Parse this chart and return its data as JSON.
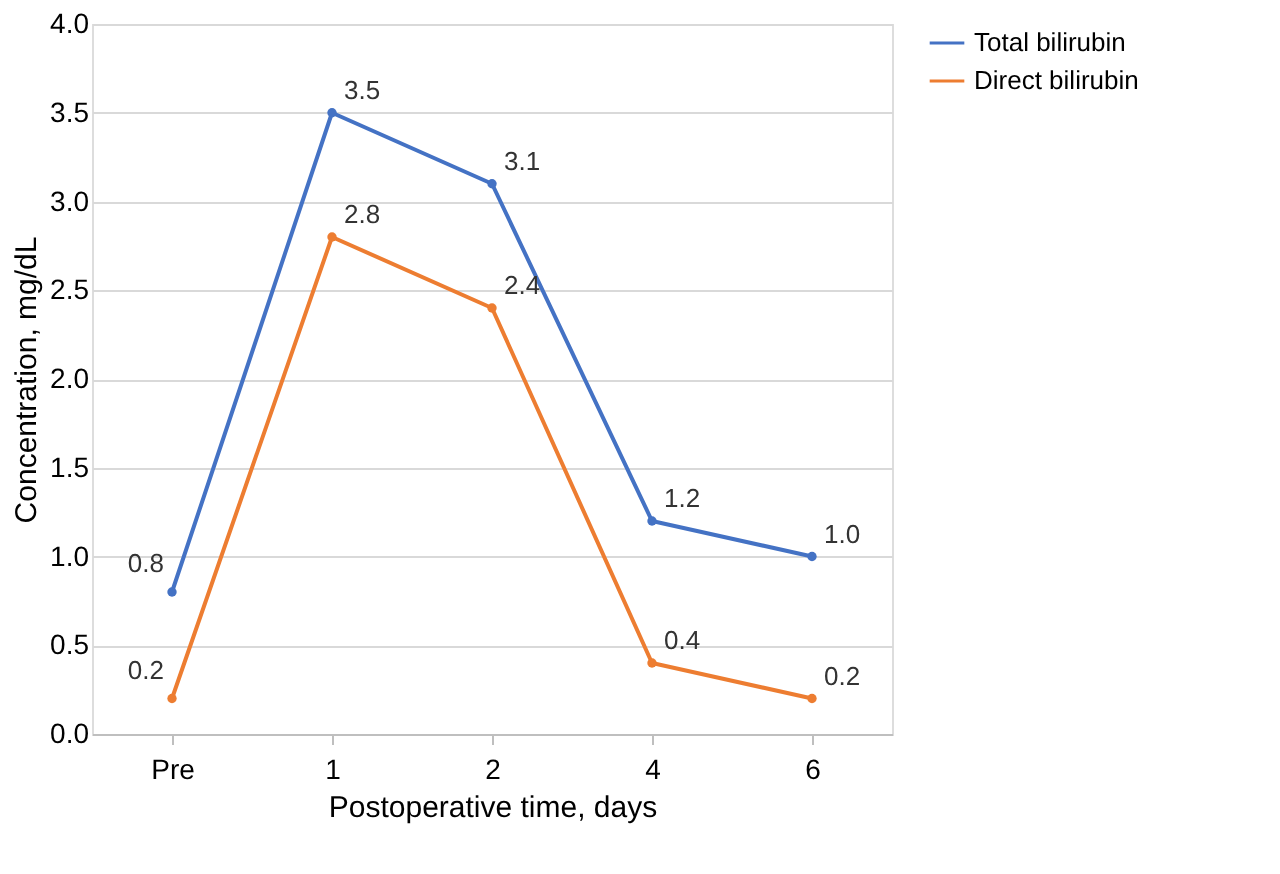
{
  "chart_data": {
    "type": "line",
    "xlabel": "Postoperative time, days",
    "ylabel": "Concentration, mg/dL",
    "categories": [
      "Pre",
      "1",
      "2",
      "4",
      "6"
    ],
    "series": [
      {
        "name": "Total bilirubin",
        "color": "#4472c4",
        "values": [
          0.8,
          3.5,
          3.1,
          1.2,
          1.0
        ],
        "value_labels": [
          "0.8",
          "3.5",
          "3.1",
          "1.2",
          "1.0"
        ]
      },
      {
        "name": "Direct bilirubin",
        "color": "#ed7d31",
        "values": [
          0.2,
          2.8,
          2.4,
          0.4,
          0.2
        ],
        "value_labels": [
          "0.2",
          "2.8",
          "2.4",
          "0.4",
          "0.2"
        ]
      }
    ],
    "ylim": [
      0,
      4
    ],
    "yticks": [
      {
        "value": 0,
        "label": "0.0"
      },
      0.5,
      {
        "value": 1,
        "label": "1.0"
      },
      1.5,
      {
        "value": 2,
        "label": "2.0"
      },
      2.5,
      {
        "value": 3,
        "label": "3.0"
      },
      3.5,
      {
        "value": 4,
        "label": "4.0"
      }
    ],
    "grid": "y",
    "legend": "right",
    "marker": "circle",
    "line_style": "solid"
  }
}
